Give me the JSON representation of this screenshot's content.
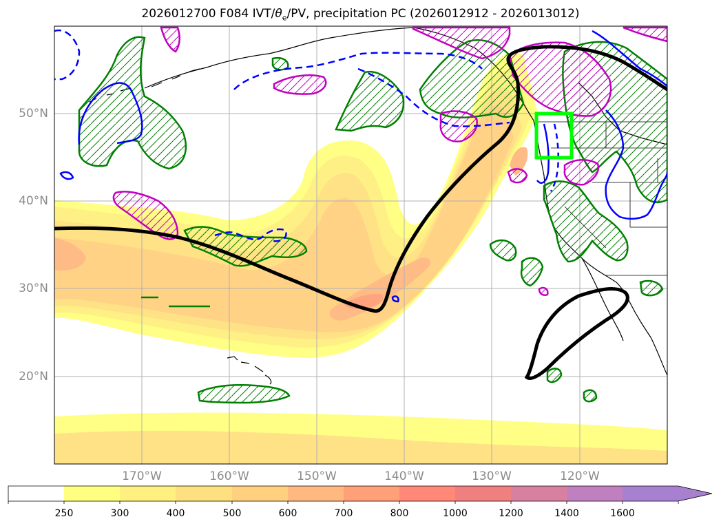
{
  "title": "2026012700 F084 IVT/θe/PV, precipitation PC (2026012912 - 2026013012)",
  "title_parts": {
    "prefix": "2026012700 F084 IVT/",
    "theta": "θ",
    "theta_sub": "e",
    "suffix": "/PV, precipitation PC (2026012912 - 2026013012)"
  },
  "map": {
    "lat_labels": [
      "50°N",
      "40°N",
      "30°N",
      "20°N"
    ],
    "lon_labels": [
      "170°W",
      "160°W",
      "150°W",
      "140°W",
      "130°W",
      "120°W"
    ],
    "lat_values": [
      50,
      40,
      30,
      20
    ],
    "lon_values": [
      -170,
      -160,
      -150,
      -140,
      -130,
      -120
    ],
    "extent": {
      "lon_min": -180,
      "lon_max": -110,
      "lat_min": 10,
      "lat_max": 60
    },
    "region_box": {
      "lon_min": -125,
      "lon_max": -121,
      "lat_min": 45,
      "lat_max": 50,
      "color": "#00ff00"
    },
    "layers": [
      "filled-ivt-contours",
      "coastlines",
      "state-borders",
      "precip-hatched-green-contours",
      "pv-magenta-hatched-contours",
      "theta-e-blue-contours",
      "theta-e-black-contour"
    ]
  },
  "colorbar": {
    "levels": [
      "250",
      "300",
      "400",
      "500",
      "600",
      "700",
      "800",
      "1000",
      "1200",
      "1400",
      "1600"
    ],
    "colors": [
      "#ffffff",
      "#ffff80",
      "#fff080",
      "#ffe080",
      "#ffd080",
      "#ffb880",
      "#ffa078",
      "#ff8878",
      "#f08080",
      "#d880a0",
      "#c080c0",
      "#a880d0"
    ],
    "extend": "max"
  },
  "colors": {
    "precip_contour": "#008000",
    "pv_contour": "#c000c0",
    "theta_blue": "#0000ff",
    "theta_black": "#000000",
    "grid": "#b0b0b0",
    "label_gray": "#8a8a8a"
  }
}
